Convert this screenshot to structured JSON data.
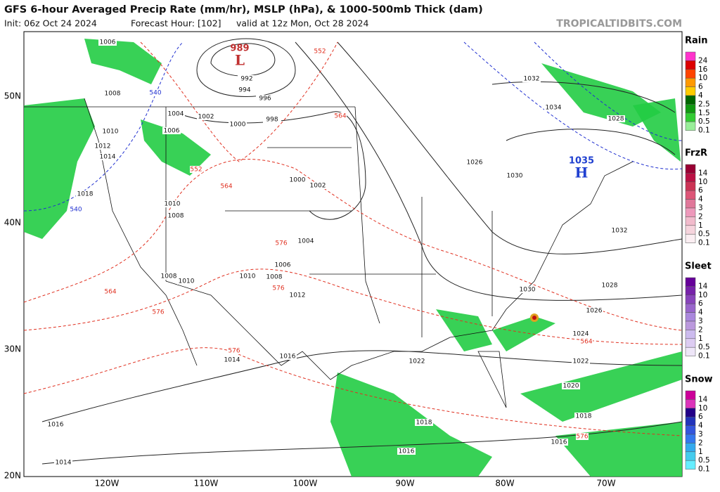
{
  "header": {
    "title": "GFS 6-hour Averaged Precip Rate (mm/hr), MSLP (hPa), & 1000-500mb Thick (dam)",
    "init": "Init: 06z Oct 24 2024",
    "forecast": "Forecast Hour: [102]",
    "valid": "valid at 12z Mon, Oct 28 2024",
    "site": "TROPICALTIDBITS.COM"
  },
  "latitude_labels": [
    "50N",
    "40N",
    "30N",
    "20N"
  ],
  "longitude_labels": [
    "120W",
    "110W",
    "100W",
    "90W",
    "80W",
    "70W"
  ],
  "pressure_centers": [
    {
      "letter": "L",
      "value": 989
    },
    {
      "letter": "H",
      "value": 1035
    }
  ],
  "isobar_labels": [
    1006,
    1008,
    1004,
    1002,
    1000,
    998,
    996,
    994,
    992,
    1006,
    1010,
    1012,
    1014,
    1018,
    1010,
    1008,
    1000,
    1002,
    1004,
    1006,
    1008,
    1010,
    1010,
    1008,
    1012,
    1014,
    1016,
    1016,
    1014,
    1018,
    1016,
    1026,
    1030,
    1032,
    1034,
    1028,
    1032,
    1028,
    1030,
    1026,
    1024,
    1022,
    1022,
    1020,
    1018,
    1016
  ],
  "thickness_labels": [
    540,
    540,
    552,
    552,
    564,
    564,
    564,
    576,
    576,
    576,
    576,
    564,
    576
  ],
  "legends": [
    {
      "title": "Rain",
      "ticks": [
        24,
        16,
        10,
        6,
        4,
        2.5,
        1.5,
        0.5,
        0.1
      ]
    },
    {
      "title": "FrzR",
      "ticks": [
        14,
        10,
        6,
        4,
        3,
        2,
        1,
        0.5,
        0.1
      ]
    },
    {
      "title": "Sleet",
      "ticks": [
        14,
        10,
        6,
        4,
        3,
        2,
        1,
        0.5,
        0.1
      ]
    },
    {
      "title": "Snow",
      "ticks": [
        14,
        10,
        6,
        4,
        3,
        2,
        1,
        0.5,
        0.1
      ]
    }
  ]
}
